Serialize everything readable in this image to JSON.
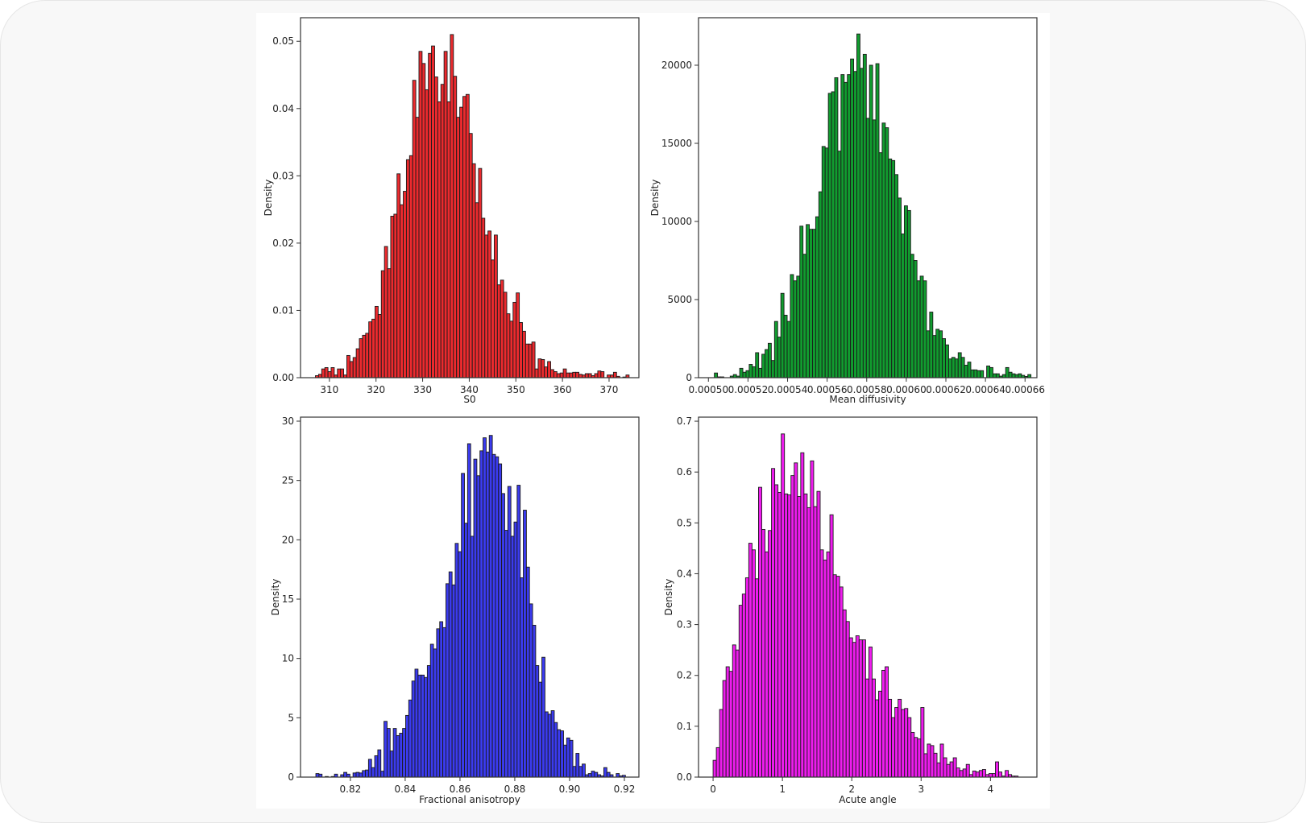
{
  "chart_data": [
    {
      "type": "bar",
      "title": "",
      "xlabel": "S0",
      "ylabel": "Density",
      "color": "#ec2a2e",
      "edgecolor": "#1a1a1a",
      "xlim": [
        303.8,
        376.4
      ],
      "ylim": [
        0,
        0.0535
      ],
      "bin_start": 307,
      "bin_width": 0.673,
      "xticks": [
        310,
        320,
        330,
        340,
        350,
        360,
        370
      ],
      "xtick_labels": [
        "310",
        "320",
        "330",
        "340",
        "350",
        "360",
        "370"
      ],
      "yticks": [
        0,
        0.01,
        0.02,
        0.03,
        0.04,
        0.05
      ],
      "ytick_labels": [
        "0.00",
        "0.01",
        "0.02",
        "0.03",
        "0.04",
        "0.05"
      ],
      "values": [
        0.0003,
        0.0005,
        0.0013,
        0.0015,
        0.0009,
        0.0015,
        0.0004,
        0.0013,
        0.0013,
        0.0004,
        0.0033,
        0.0024,
        0.003,
        0.0043,
        0.0058,
        0.0063,
        0.0066,
        0.0083,
        0.0087,
        0.0106,
        0.0094,
        0.0159,
        0.0195,
        0.0162,
        0.024,
        0.0243,
        0.0303,
        0.0257,
        0.0277,
        0.0324,
        0.033,
        0.0442,
        0.0387,
        0.0485,
        0.0467,
        0.0428,
        0.0482,
        0.0493,
        0.0447,
        0.041,
        0.0436,
        0.0485,
        0.041,
        0.051,
        0.0448,
        0.0387,
        0.0402,
        0.0418,
        0.0421,
        0.0363,
        0.0318,
        0.026,
        0.0311,
        0.0237,
        0.0212,
        0.0218,
        0.0175,
        0.0212,
        0.0138,
        0.0145,
        0.0127,
        0.0095,
        0.0084,
        0.0112,
        0.0126,
        0.0082,
        0.0069,
        0.005,
        0.005,
        0.0053,
        0.0013,
        0.0028,
        0.0027,
        0.0016,
        0.0024,
        0.0012,
        0.0009,
        0.0006,
        0.0007,
        0.0013,
        0.0007,
        0.0007,
        0.0008,
        0.0008,
        0.0005,
        0.0004,
        0.0006,
        0.0006,
        0.0003,
        0.0006,
        0.001,
        0.0009,
        0,
        0.0004,
        0.0004,
        0.0008,
        0.0002,
        0,
        0.0001,
        0.0004
      ]
    },
    {
      "type": "bar",
      "title": "",
      "xlabel": "Mean diffusivity",
      "ylabel": "Density",
      "color": "#119c2f",
      "edgecolor": "#1a1a1a",
      "xlim": [
        0.000495,
        0.000666
      ],
      "ylim": [
        0,
        23040
      ],
      "bin_start": 0.000503,
      "bin_width": 1.6e-06,
      "xticks": [
        0.0005,
        0.00052,
        0.00054,
        0.00056,
        0.00058,
        0.0006,
        0.00062,
        0.00064,
        0.00066
      ],
      "xtick_labels": [
        "0.00050",
        "0.00052",
        "0.00054",
        "0.00056",
        "0.00058",
        "0.00060",
        "0.00062",
        "0.00064",
        "0.00066"
      ],
      "yticks": [
        0,
        5000,
        10000,
        15000,
        20000
      ],
      "ytick_labels": [
        "0",
        "5000",
        "10000",
        "15000",
        "20000"
      ],
      "values": [
        300,
        50,
        50,
        0,
        0,
        100,
        200,
        100,
        600,
        350,
        450,
        850,
        700,
        1600,
        600,
        1500,
        1800,
        2200,
        1100,
        3600,
        2600,
        5400,
        4000,
        3600,
        6600,
        6200,
        6500,
        9700,
        7900,
        9800,
        9500,
        9500,
        10300,
        11900,
        14800,
        14700,
        18200,
        18300,
        19200,
        14500,
        19400,
        18900,
        19400,
        20400,
        19600,
        22000,
        19800,
        20700,
        16600,
        20000,
        16500,
        20100,
        14400,
        16300,
        16000,
        14000,
        13900,
        13000,
        11500,
        9200,
        11000,
        10700,
        7900,
        7500,
        6200,
        6500,
        6200,
        3000,
        4200,
        2700,
        3100,
        3000,
        2500,
        2100,
        1200,
        1300,
        1200,
        1600,
        1300,
        800,
        1000,
        500,
        500,
        450,
        450,
        0,
        750,
        650,
        250,
        250,
        100,
        200,
        650,
        350,
        250,
        200,
        250,
        150,
        80,
        200
      ]
    },
    {
      "type": "bar",
      "title": "",
      "xlabel": "Fractional anisotropy",
      "ylabel": "Density",
      "color": "#3b3bef",
      "edgecolor": "#1a1a1a",
      "xlim": [
        0.8018,
        0.9253
      ],
      "ylim": [
        0,
        30.34
      ],
      "bin_start": 0.8074,
      "bin_width": 0.00113,
      "xticks": [
        0.82,
        0.84,
        0.86,
        0.88,
        0.9,
        0.92
      ],
      "xtick_labels": [
        "0.82",
        "0.84",
        "0.86",
        "0.88",
        "0.90",
        "0.92"
      ],
      "yticks": [
        0,
        5,
        10,
        15,
        20,
        25,
        30
      ],
      "ytick_labels": [
        "0",
        "5",
        "10",
        "15",
        "20",
        "25",
        "30"
      ],
      "values": [
        0.3,
        0.25,
        0,
        0.05,
        0,
        0.05,
        0.25,
        0,
        0.2,
        0.4,
        0.25,
        0,
        0.35,
        0.4,
        0.35,
        0.55,
        0.6,
        1.5,
        0.8,
        1.8,
        2.3,
        0.5,
        4.7,
        4.1,
        2.2,
        4.1,
        3.5,
        3.7,
        4.1,
        5.2,
        6.5,
        8.1,
        9.1,
        8.6,
        8.6,
        8.4,
        9.4,
        11.2,
        10.8,
        12.5,
        13.1,
        12.6,
        16.3,
        17.3,
        16.2,
        19.7,
        19.0,
        25.6,
        21.4,
        28.1,
        20.3,
        26.8,
        25.4,
        27.5,
        28.6,
        27.4,
        28.8,
        27.2,
        27.0,
        26.4,
        23.9,
        20.8,
        24.5,
        20.3,
        21.5,
        24.6,
        16.8,
        22.5,
        17.7,
        14.6,
        12.8,
        9.4,
        8.0,
        10.1,
        5.5,
        5.3,
        5.6,
        4.6,
        4.0,
        3.9,
        2.7,
        3.3,
        3.1,
        0.9,
        2.0,
        0.9,
        1.1,
        0.2,
        0.3,
        0.5,
        0.4,
        0.2,
        0.1,
        0.8,
        0.4,
        0.2,
        0,
        0.3,
        0.1,
        0.15
      ]
    },
    {
      "type": "bar",
      "title": "",
      "xlabel": "Acute angle",
      "ylabel": "Density",
      "color": "#ee1cee",
      "edgecolor": "#1a1a1a",
      "xlim": [
        -0.21,
        4.67
      ],
      "ylim": [
        0,
        0.708
      ],
      "bin_start": 0,
      "bin_width": 0.0468,
      "xticks": [
        0,
        1,
        2,
        3,
        4
      ],
      "xtick_labels": [
        "0",
        "1",
        "2",
        "3",
        "4"
      ],
      "yticks": [
        0,
        0.1,
        0.2,
        0.3,
        0.4,
        0.5,
        0.6,
        0.7
      ],
      "ytick_labels": [
        "0.0",
        "0.1",
        "0.2",
        "0.3",
        "0.4",
        "0.5",
        "0.6",
        "0.7"
      ],
      "values": [
        0.033,
        0.058,
        0.133,
        0.19,
        0.217,
        0.208,
        0.26,
        0.25,
        0.338,
        0.36,
        0.392,
        0.46,
        0.447,
        0.39,
        0.57,
        0.487,
        0.443,
        0.485,
        0.607,
        0.575,
        0.56,
        0.675,
        0.557,
        0.555,
        0.593,
        0.618,
        0.552,
        0.638,
        0.557,
        0.53,
        0.622,
        0.532,
        0.562,
        0.447,
        0.427,
        0.443,
        0.516,
        0.398,
        0.395,
        0.374,
        0.329,
        0.306,
        0.274,
        0.265,
        0.278,
        0.27,
        0.27,
        0.193,
        0.256,
        0.193,
        0.152,
        0.169,
        0.21,
        0.217,
        0.153,
        0.117,
        0.137,
        0.153,
        0.133,
        0.135,
        0.117,
        0.088,
        0.078,
        0.075,
        0.137,
        0.046,
        0.065,
        0.062,
        0.047,
        0.028,
        0.065,
        0.038,
        0.025,
        0.03,
        0.038,
        0.018,
        0.013,
        0.016,
        0.025,
        0.005,
        0.012,
        0.01,
        0.013,
        0.015,
        0.005,
        0.007,
        0.007,
        0.03,
        0.01,
        0.002,
        0.013,
        0.005,
        0.002,
        0.002
      ]
    }
  ]
}
